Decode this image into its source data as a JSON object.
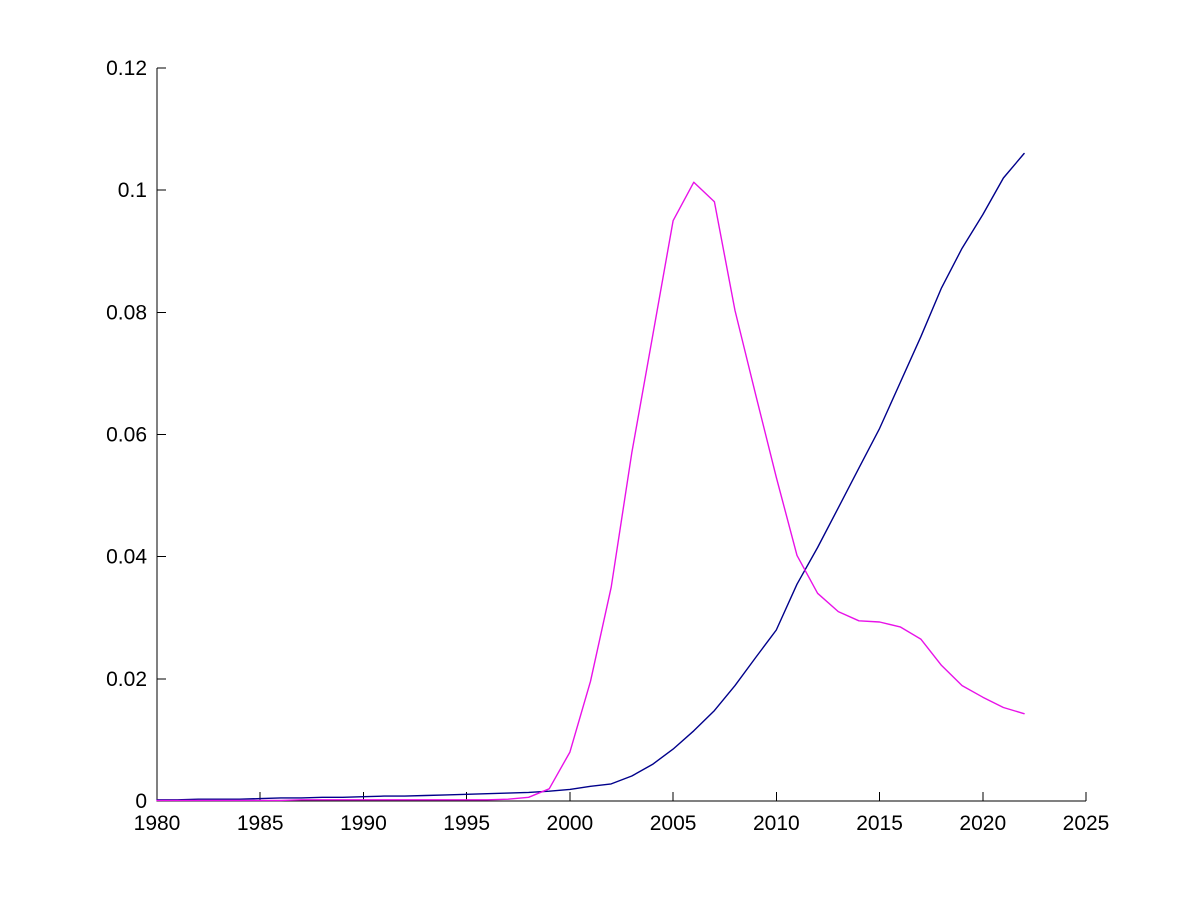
{
  "figure": {
    "background": "#FFFFFF"
  },
  "chart_data": {
    "type": "line",
    "title": "",
    "subtitle": "",
    "xlabel": "",
    "ylabel": "",
    "grid": false,
    "legend": "none",
    "box": "off",
    "axis_color": "#000000",
    "background": "#FFFFFF",
    "xlim": [
      1980,
      2025
    ],
    "ylim": [
      0,
      0.12
    ],
    "xticks": [
      1980,
      1985,
      1990,
      1995,
      2000,
      2005,
      2010,
      2015,
      2020,
      2025
    ],
    "xtick_labels": [
      "1980",
      "1985",
      "1990",
      "1995",
      "2000",
      "2005",
      "2010",
      "2015",
      "2020",
      "2025"
    ],
    "yticks": [
      0,
      0.02,
      0.04,
      0.06,
      0.08,
      0.1,
      0.12
    ],
    "ytick_labels": [
      "0",
      "0.02",
      "0.04",
      "0.06",
      "0.08",
      "0.1",
      "0.12"
    ],
    "x": [
      1980,
      1981,
      1982,
      1983,
      1984,
      1985,
      1986,
      1987,
      1988,
      1989,
      1990,
      1991,
      1992,
      1993,
      1994,
      1995,
      1996,
      1997,
      1998,
      1999,
      2000,
      2001,
      2002,
      2003,
      2004,
      2005,
      2006,
      2007,
      2008,
      2009,
      2010,
      2011,
      2012,
      2013,
      2014,
      2015,
      2016,
      2017,
      2018,
      2019,
      2020,
      2021,
      2022
    ],
    "series": [
      {
        "name": "rising-dark-blue-line",
        "color": "#00008B",
        "values": [
          0.0002,
          0.0002,
          0.0003,
          0.0003,
          0.0003,
          0.0004,
          0.0005,
          0.0005,
          0.0006,
          0.0006,
          0.0007,
          0.0008,
          0.0008,
          0.0009,
          0.001,
          0.0011,
          0.0012,
          0.0013,
          0.0014,
          0.0016,
          0.0019,
          0.0024,
          0.0028,
          0.0041,
          0.006,
          0.0085,
          0.0115,
          0.0148,
          0.0189,
          0.0235,
          0.028,
          0.0355,
          0.0415,
          0.048,
          0.0545,
          0.061,
          0.0685,
          0.076,
          0.084,
          0.0905,
          0.096,
          0.102,
          0.106
        ]
      },
      {
        "name": "peaked-magenta-line",
        "color": "#E812E8",
        "values": [
          0.0001,
          0.0001,
          0.0001,
          0.0001,
          0.0001,
          0.0001,
          0.0001,
          0.0002,
          0.0002,
          0.0002,
          0.0002,
          0.0002,
          0.0002,
          0.0002,
          0.0002,
          0.0002,
          0.0002,
          0.0003,
          0.0006,
          0.002,
          0.008,
          0.0196,
          0.035,
          0.057,
          0.076,
          0.095,
          0.1013,
          0.0981,
          0.0803,
          0.0665,
          0.053,
          0.0402,
          0.034,
          0.031,
          0.0295,
          0.0293,
          0.0285,
          0.0265,
          0.0222,
          0.0189,
          0.017,
          0.0153,
          0.0143
        ]
      }
    ]
  }
}
